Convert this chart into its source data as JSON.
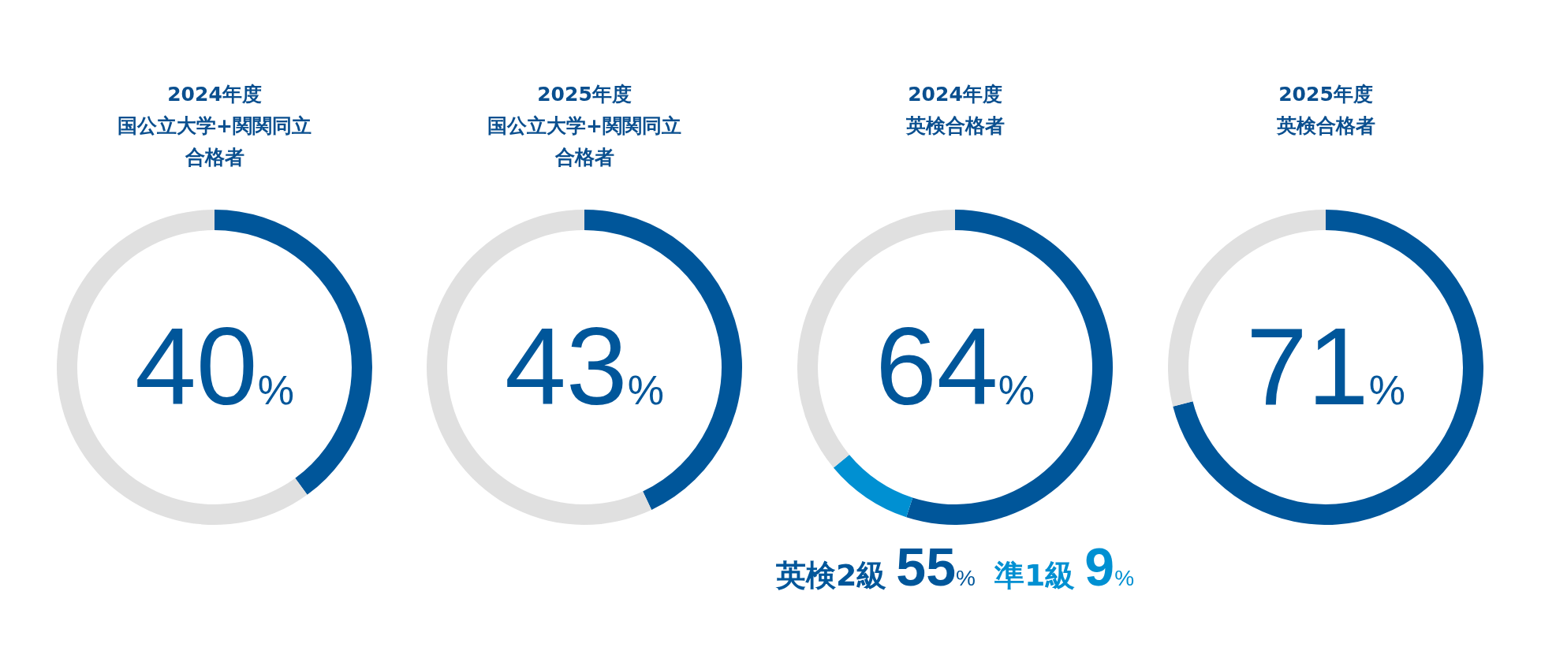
{
  "chart_data": [
    {
      "type": "donut",
      "title": "2024年度",
      "subtitle": "国公立大学+関関同立合格者",
      "categories": [
        null,
        null
      ],
      "values": [
        40,
        60
      ],
      "colors": [
        "#00569a",
        "#e0e0e0"
      ],
      "annotations": [
        "40%"
      ]
    },
    {
      "type": "donut",
      "title": "2025年度",
      "subtitle": "国公立大学+関関同立合格者",
      "categories": [
        null,
        null
      ],
      "values": [
        43,
        57
      ],
      "colors": [
        "#00569a",
        "#e0e0e0"
      ],
      "annotations": [
        "43%"
      ]
    },
    {
      "type": "donut",
      "title": "2024年度",
      "subtitle": "英検合格者",
      "categories": [
        null,
        null,
        null
      ],
      "values": [
        55,
        9,
        36
      ],
      "colors": [
        "#00569a",
        "#0090d2",
        "#e0e0e0"
      ],
      "annotations": [
        "64%",
        "英検2級",
        "55%",
        "準1級",
        "9%"
      ]
    },
    {
      "type": "donut",
      "title": "2025年度",
      "subtitle": "英検合格者",
      "categories": [
        null,
        null
      ],
      "values": [
        71,
        29
      ],
      "colors": [
        "#00569a",
        "#e0e0e0"
      ],
      "annotations": [
        "71%"
      ]
    }
  ]
}
